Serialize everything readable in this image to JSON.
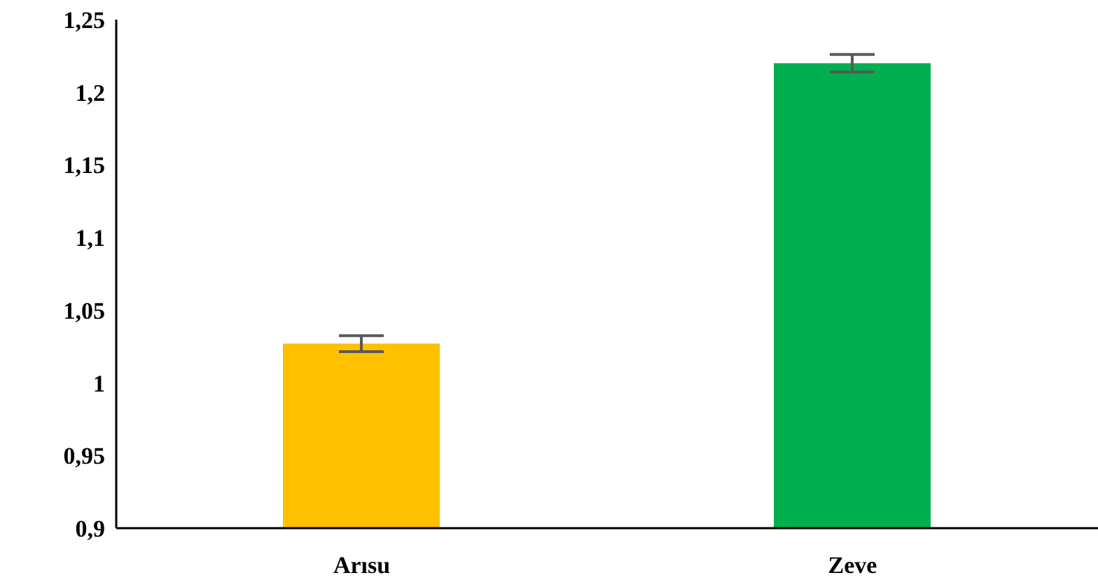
{
  "chart_data": {
    "type": "bar",
    "categories": [
      "Arısu",
      "Zeve"
    ],
    "values": [
      1.027,
      1.22
    ],
    "colors": [
      "#ffc000",
      "#00b050"
    ],
    "errors": [
      0.0055,
      0.006
    ],
    "ylim": [
      0.9,
      1.25
    ],
    "yticks": [
      {
        "value": 0.9,
        "label": "0,9"
      },
      {
        "value": 0.95,
        "label": "0,95"
      },
      {
        "value": 1,
        "label": "1"
      },
      {
        "value": 1.05,
        "label": "1,05"
      },
      {
        "value": 1.1,
        "label": "1,1"
      },
      {
        "value": 1.15,
        "label": "1,15"
      },
      {
        "value": 1.2,
        "label": "1,2"
      },
      {
        "value": 1.25,
        "label": "1,25"
      }
    ],
    "grid": false
  }
}
